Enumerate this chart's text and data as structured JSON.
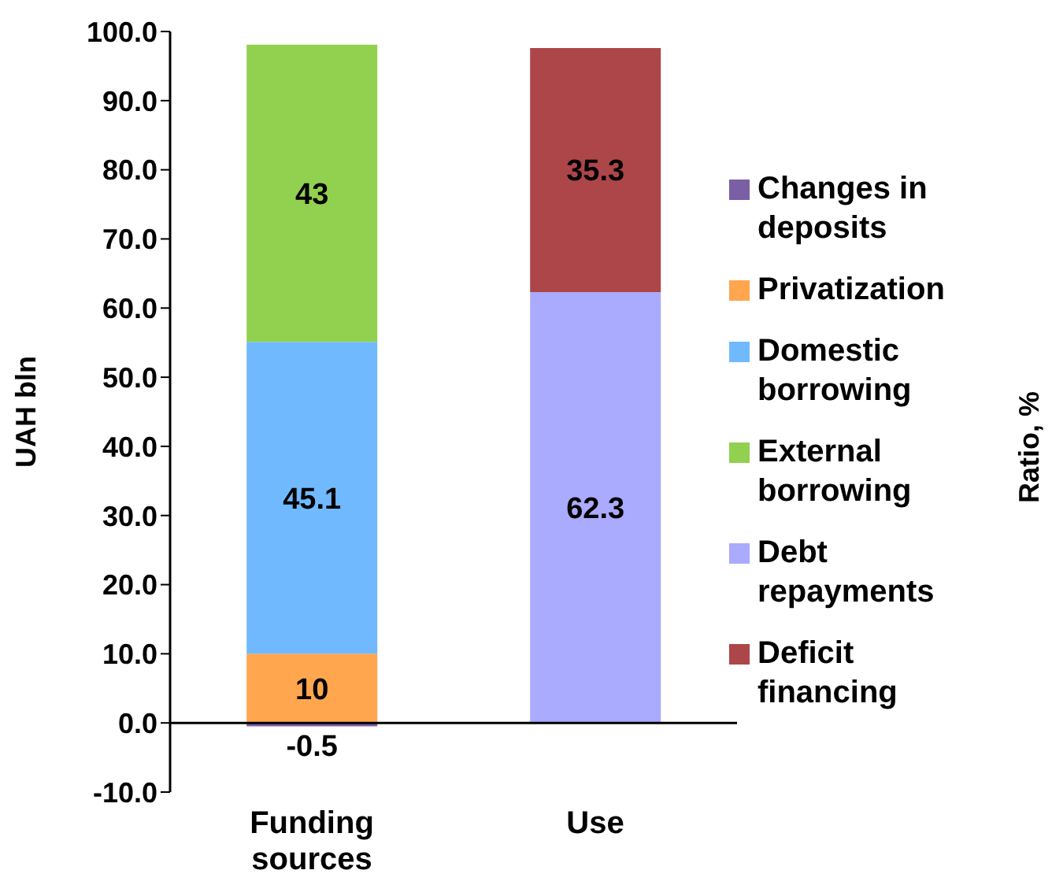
{
  "chart_data": {
    "type": "bar",
    "stacked": true,
    "categories": [
      "Funding sources",
      "Use"
    ],
    "ylabel": "UAH bln",
    "annotations": [
      "Ratio, %"
    ],
    "ref_lines": [
      {
        "axis": "y",
        "value": 0,
        "color": "#000000"
      }
    ],
    "ylim": [
      -10,
      100
    ],
    "yticks": [
      {
        "value": -10,
        "label": "-10.0"
      },
      {
        "value": 0,
        "label": "0.0"
      },
      {
        "value": 10,
        "label": "10.0"
      },
      {
        "value": 20,
        "label": "20.0"
      },
      {
        "value": 30,
        "label": "30.0"
      },
      {
        "value": 40,
        "label": "40.0"
      },
      {
        "value": 50,
        "label": "50.0"
      },
      {
        "value": 60,
        "label": "60.0"
      },
      {
        "value": 70,
        "label": "70.0"
      },
      {
        "value": 80,
        "label": "80.0"
      },
      {
        "value": 90,
        "label": "90.0"
      },
      {
        "value": 100,
        "label": "100.0"
      }
    ],
    "legend": "right",
    "data_labels": true,
    "series": [
      {
        "name": "Changes in deposits",
        "color": "#7b5fa5",
        "values": [
          -0.5,
          null
        ]
      },
      {
        "name": "Privatization",
        "color": "#ffa64f",
        "values": [
          10,
          null
        ]
      },
      {
        "name": "Domestic borrowing",
        "color": "#70b9ff",
        "values": [
          45.1,
          null
        ]
      },
      {
        "name": "External borrowing",
        "color": "#92d050",
        "values": [
          43,
          null
        ]
      },
      {
        "name": "Debt repayments",
        "color": "#aaaaff",
        "values": [
          null,
          62.3
        ]
      },
      {
        "name": "Deficit financing",
        "color": "#ad4648",
        "values": [
          null,
          35.3
        ]
      }
    ]
  }
}
